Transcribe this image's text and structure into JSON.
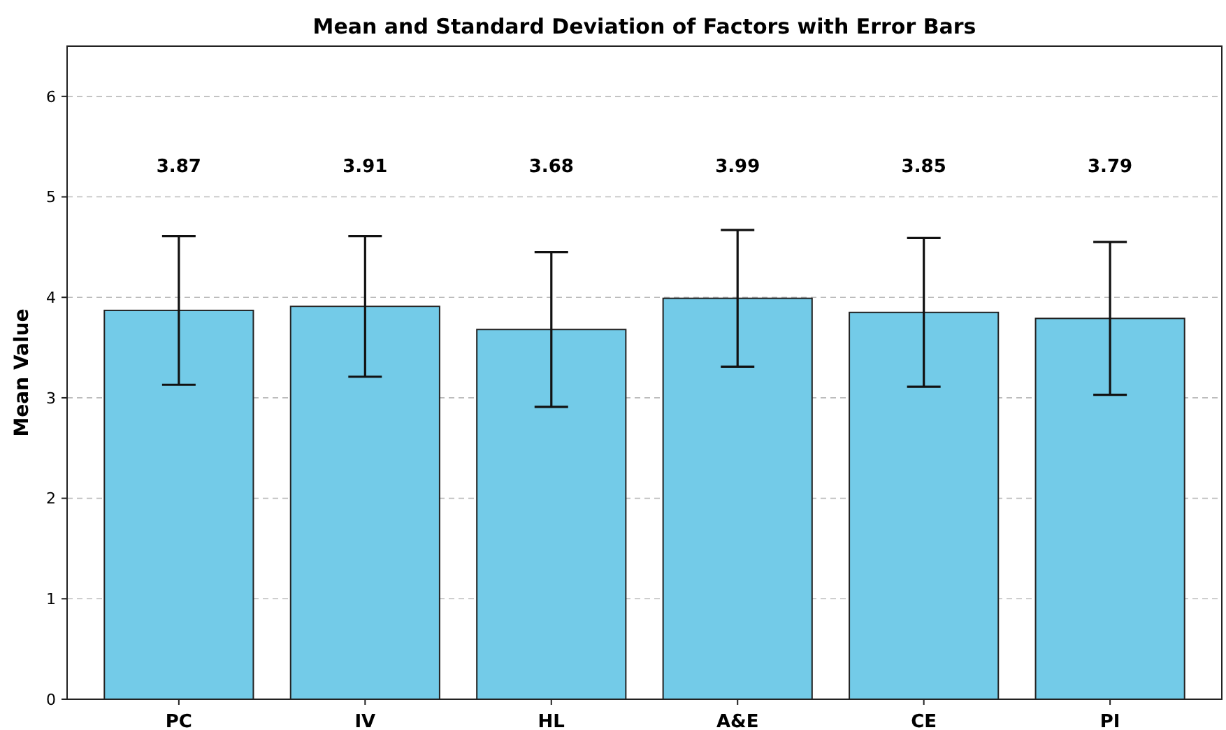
{
  "chart_data": {
    "type": "bar",
    "title": "Mean and Standard Deviation of Factors with Error Bars",
    "ylabel": "Mean Value",
    "categories": [
      "PC",
      "IV",
      "HL",
      "A&E",
      "CE",
      "PI"
    ],
    "values": [
      3.87,
      3.91,
      3.68,
      3.99,
      3.85,
      3.79
    ],
    "errors": [
      0.74,
      0.7,
      0.77,
      0.68,
      0.74,
      0.76
    ],
    "color": "#73cbe8",
    "ylim": [
      0,
      6.5
    ],
    "yticks": [
      0,
      1,
      2,
      3,
      4,
      5,
      6
    ],
    "grid": "y",
    "annotations": [
      "3.87",
      "3.91",
      "3.68",
      "3.99",
      "3.85",
      "3.79"
    ]
  }
}
